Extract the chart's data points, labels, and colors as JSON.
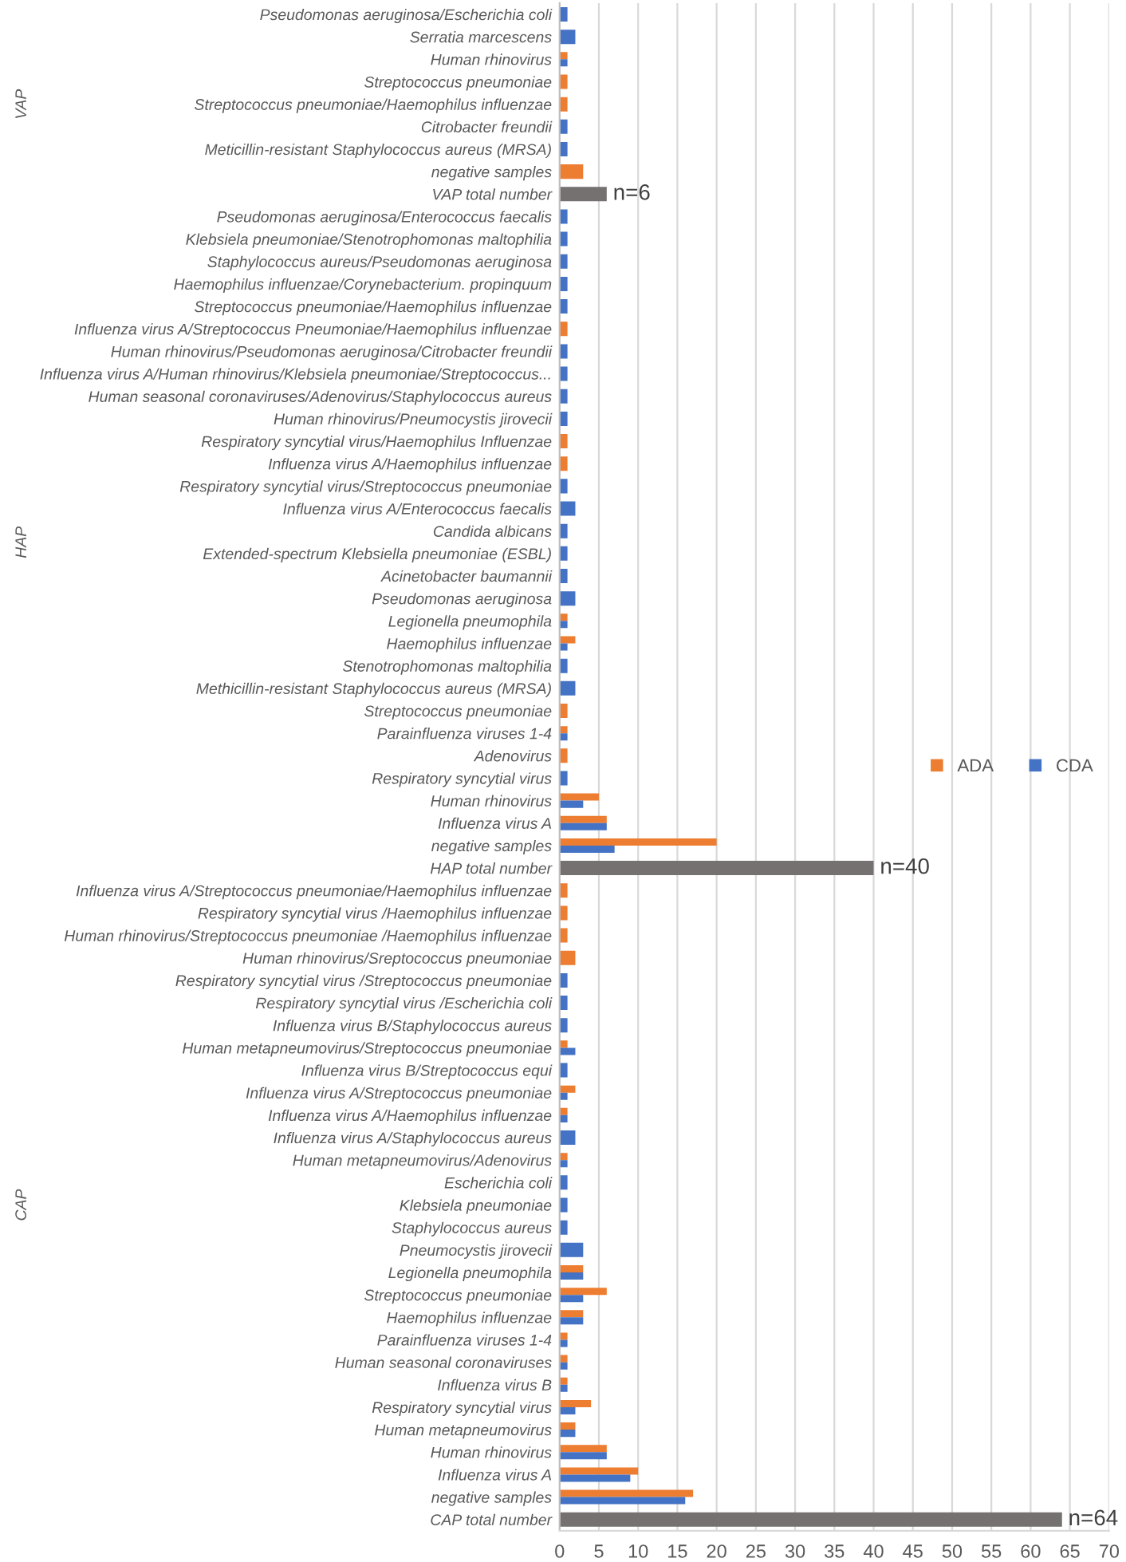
{
  "chart_data": {
    "type": "bar",
    "orientation": "horizontal",
    "categories": [
      "Pseudomonas aeruginosa/Escherichia coli",
      "Serratia marcescens",
      "Human rhinovirus",
      "Streptococcus pneumoniae",
      "Streptococcus pneumoniae/Haemophilus influenzae",
      "Citrobacter freundii",
      "Meticillin-resistant Staphylococcus aureus (MRSA)",
      "negative samples",
      "VAP total number",
      "Pseudomonas aeruginosa/Enterococcus faecalis",
      "Klebsiela pneumoniae/Stenotrophomonas maltophilia",
      "Staphylococcus aureus/Pseudomonas aeruginosa",
      "Haemophilus influenzae/Corynebacterium. propinquum",
      "Streptococcus pneumoniae/Haemophilus influenzae",
      "Influenza virus A/Streptococcus Pneumoniae/Haemophilus influenzae",
      "Human rhinovirus/Pseudomonas aeruginosa/Citrobacter freundii",
      "Influenza virus A/Human rhinovirus/Klebsiela pneumoniae/Streptococcus...",
      "Human seasonal coronaviruses/Adenovirus/Staphylococcus aureus",
      "Human rhinovirus/Pneumocystis jirovecii",
      "Respiratory syncytial virus/Haemophilus Influenzae",
      "Influenza virus A/Haemophilus influenzae",
      "Respiratory syncytial virus/Streptococcus pneumoniae",
      "Influenza virus A/Enterococcus faecalis",
      "Candida albicans",
      "Extended-spectrum Klebsiella pneumoniae (ESBL)",
      "Acinetobacter baumannii",
      "Pseudomonas aeruginosa",
      "Legionella pneumophila",
      "Haemophilus influenzae",
      "Stenotrophomonas maltophilia",
      "Methicillin-resistant Staphylococcus aureus (MRSA)",
      "Streptococcus pneumoniae",
      "Parainfluenza viruses 1-4",
      "Adenovirus",
      "Respiratory syncytial virus",
      "Human rhinovirus",
      "Influenza virus A",
      "negative samples",
      "HAP total number",
      "Influenza virus A/Streptococcus pneumoniae/Haemophilus influenzae",
      "Respiratory syncytial virus /Haemophilus influenzae",
      "Human rhinovirus/Streptococcus pneumoniae /Haemophilus influenzae",
      "Human rhinovirus/Sreptococcus pneumoniae",
      "Respiratory syncytial virus /Streptococcus pneumoniae",
      "Respiratory syncytial virus /Escherichia coli",
      "Influenza virus B/Staphylococcus aureus",
      "Human metapneumovirus/Streptococcus pneumoniae",
      "Influenza virus B/Streptococcus equi",
      "Influenza virus A/Streptococcus pneumoniae",
      "Influenza virus A/Haemophilus influenzae",
      "Influenza virus A/Staphylococcus aureus",
      "Human metapneumovirus/Adenovirus",
      "Escherichia coli",
      "Klebsiela pneumoniae",
      "Staphylococcus aureus",
      "Pneumocystis jirovecii",
      "Legionella pneumophila",
      "Streptococcus pneumoniae",
      "Haemophilus influenzae",
      "Parainfluenza viruses 1-4",
      "Human seasonal coronaviruses",
      "Influenza virus B",
      "Respiratory syncytial virus",
      "Human metapneumovirus",
      "Human rhinovirus",
      "Influenza virus A",
      "negative samples",
      "CAP total number"
    ],
    "series": [
      {
        "name": "ADA",
        "color": "#ed7d31",
        "values": [
          null,
          null,
          1,
          1,
          1,
          null,
          null,
          3,
          null,
          null,
          null,
          null,
          null,
          null,
          1,
          null,
          null,
          null,
          null,
          1,
          1,
          null,
          null,
          null,
          null,
          null,
          null,
          1,
          2,
          null,
          null,
          1,
          1,
          1,
          null,
          5,
          6,
          20,
          null,
          1,
          1,
          1,
          2,
          null,
          null,
          null,
          1,
          null,
          2,
          1,
          null,
          1,
          null,
          null,
          null,
          null,
          3,
          6,
          3,
          1,
          1,
          1,
          4,
          2,
          6,
          10,
          17,
          null
        ]
      },
      {
        "name": "CDA",
        "color": "#4472c4",
        "values": [
          1,
          2,
          1,
          null,
          null,
          1,
          1,
          null,
          null,
          1,
          1,
          1,
          1,
          1,
          null,
          1,
          1,
          1,
          1,
          null,
          null,
          1,
          2,
          1,
          1,
          1,
          2,
          1,
          1,
          1,
          2,
          null,
          1,
          null,
          1,
          3,
          6,
          7,
          null,
          null,
          null,
          null,
          null,
          1,
          1,
          1,
          2,
          1,
          1,
          1,
          2,
          1,
          1,
          1,
          1,
          3,
          3,
          3,
          3,
          1,
          1,
          1,
          2,
          2,
          6,
          9,
          16,
          null
        ]
      },
      {
        "color": "#767171",
        "values": [
          null,
          null,
          null,
          null,
          null,
          null,
          null,
          null,
          6,
          null,
          null,
          null,
          null,
          null,
          null,
          null,
          null,
          null,
          null,
          null,
          null,
          null,
          null,
          null,
          null,
          null,
          null,
          null,
          null,
          null,
          null,
          null,
          null,
          null,
          null,
          null,
          null,
          null,
          40,
          null,
          null,
          null,
          null,
          null,
          null,
          null,
          null,
          null,
          null,
          null,
          null,
          null,
          null,
          null,
          null,
          null,
          null,
          null,
          null,
          null,
          null,
          null,
          null,
          null,
          null,
          null,
          null,
          64
        ],
        "value_labels": [
          null,
          null,
          null,
          null,
          null,
          null,
          null,
          null,
          "n=6",
          null,
          null,
          null,
          null,
          null,
          null,
          null,
          null,
          null,
          null,
          null,
          null,
          null,
          null,
          null,
          null,
          null,
          null,
          null,
          null,
          null,
          null,
          null,
          null,
          null,
          null,
          null,
          null,
          null,
          "n=40",
          null,
          null,
          null,
          null,
          null,
          null,
          null,
          null,
          null,
          null,
          null,
          null,
          null,
          null,
          null,
          null,
          null,
          null,
          null,
          null,
          null,
          null,
          null,
          null,
          null,
          null,
          null,
          null,
          "n=64"
        ]
      }
    ],
    "annotations": [
      "VAP",
      "HAP",
      "CAP"
    ],
    "xlim": [
      0,
      70
    ],
    "xticks": [
      0,
      5,
      10,
      15,
      20,
      25,
      30,
      35,
      40,
      45,
      50,
      55,
      60,
      65,
      70
    ],
    "grid": "x",
    "legend": "right"
  }
}
